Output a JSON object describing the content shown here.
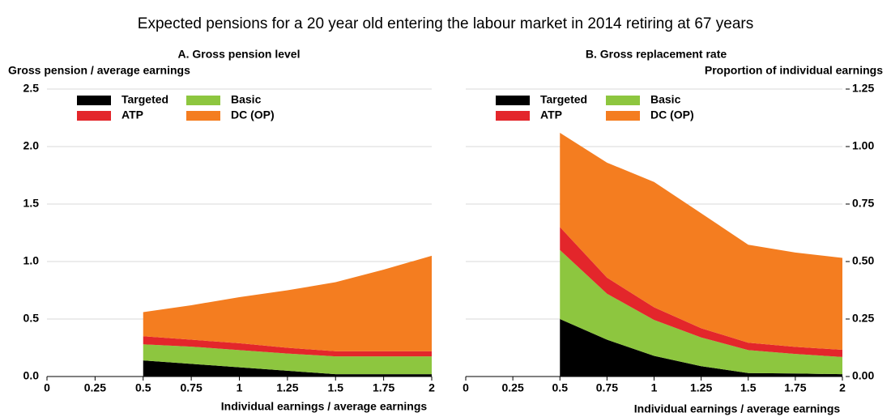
{
  "title": "Expected pensions for a 20 year old entering the labour market in 2014 retiring at 67 years",
  "chart_data": [
    {
      "type": "area",
      "stacked": true,
      "title": "A. Gross pension level",
      "y_label": "Gross pension / average earnings",
      "x_label": "Individual earnings / average earnings",
      "y_axis_side": "left",
      "grid": true,
      "x": [
        0.5,
        0.75,
        1,
        1.25,
        1.5,
        1.75,
        2
      ],
      "series": [
        {
          "name": "Targeted",
          "color": "#000000",
          "values": [
            0.14,
            0.11,
            0.08,
            0.05,
            0.02,
            0.02,
            0.02
          ]
        },
        {
          "name": "Basic",
          "color": "#8dc63f",
          "values": [
            0.14,
            0.15,
            0.15,
            0.15,
            0.155,
            0.155,
            0.155
          ]
        },
        {
          "name": "ATP",
          "color": "#e3262b",
          "values": [
            0.07,
            0.06,
            0.06,
            0.05,
            0.045,
            0.045,
            0.045
          ]
        },
        {
          "name": "DC (OP)",
          "color": "#f47d20",
          "values": [
            0.21,
            0.3,
            0.4,
            0.5,
            0.6,
            0.71,
            0.83
          ]
        }
      ],
      "legend_order": [
        0,
        2,
        1,
        3
      ],
      "xlim": [
        0,
        2
      ],
      "xticks": [
        0,
        0.25,
        0.5,
        0.75,
        1,
        1.25,
        1.5,
        1.75,
        2
      ],
      "ylim": [
        0,
        2.5
      ],
      "yticks": [
        {
          "value": 0,
          "label": "0.0"
        },
        0.5,
        {
          "value": 1,
          "label": "1.0"
        },
        1.5,
        {
          "value": 2,
          "label": "2.0"
        },
        2.5
      ]
    },
    {
      "type": "area",
      "stacked": true,
      "title": "B. Gross replacement rate",
      "y_label": "Proportion of individual earnings",
      "x_label": "Individual earnings / average earnings",
      "y_axis_side": "right",
      "grid": true,
      "x": [
        0.5,
        0.75,
        1,
        1.25,
        1.5,
        1.75,
        2
      ],
      "series": [
        {
          "name": "Targeted",
          "color": "#000000",
          "values": [
            0.25,
            0.16,
            0.09,
            0.045,
            0.015,
            0.013,
            0.01
          ]
        },
        {
          "name": "Basic",
          "color": "#8dc63f",
          "values": [
            0.3,
            0.2,
            0.156,
            0.125,
            0.1,
            0.085,
            0.075
          ]
        },
        {
          "name": "ATP",
          "color": "#e3262b",
          "values": [
            0.1,
            0.07,
            0.055,
            0.04,
            0.032,
            0.031,
            0.031
          ]
        },
        {
          "name": "DC (OP)",
          "color": "#f47d20",
          "values": [
            0.41,
            0.5,
            0.545,
            0.5,
            0.426,
            0.41,
            0.4
          ]
        }
      ],
      "legend_order": [
        0,
        2,
        1,
        3
      ],
      "xlim": [
        0,
        2
      ],
      "xticks": [
        0,
        0.25,
        0.5,
        0.75,
        1,
        1.25,
        1.5,
        1.75,
        2
      ],
      "ylim": [
        0,
        1.25
      ],
      "yticks": [
        {
          "value": 0,
          "label": "0.00"
        },
        {
          "value": 0.25,
          "label": "0.25"
        },
        {
          "value": 0.5,
          "label": "0.50"
        },
        {
          "value": 0.75,
          "label": "0.75"
        },
        {
          "value": 1,
          "label": "1.00"
        },
        {
          "value": 1.25,
          "label": "1.25"
        }
      ]
    }
  ]
}
